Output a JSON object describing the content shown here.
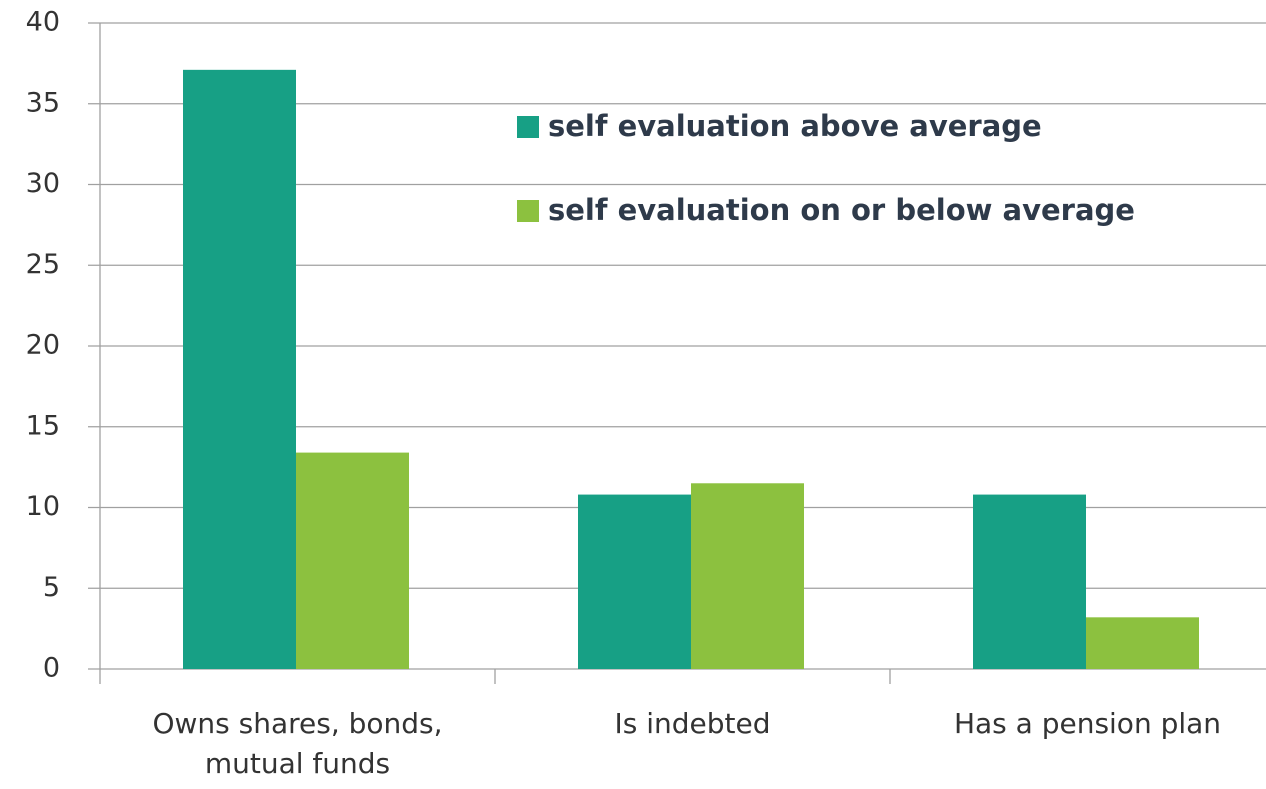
{
  "chart_data": {
    "type": "bar",
    "categories": [
      "Owns shares, bonds, mutual funds",
      "Is indebted",
      "Has a pension plan"
    ],
    "series": [
      {
        "name": "self evaluation above average",
        "color": "#17a085",
        "values": [
          37.1,
          10.8,
          10.8
        ]
      },
      {
        "name": "self evaluation on or below average",
        "color": "#8cc13f",
        "values": [
          13.4,
          11.5,
          3.2
        ]
      }
    ],
    "ylim": [
      0,
      40
    ],
    "yticks": [
      0,
      5,
      10,
      15,
      20,
      25,
      30,
      35,
      40
    ],
    "grid": true
  }
}
